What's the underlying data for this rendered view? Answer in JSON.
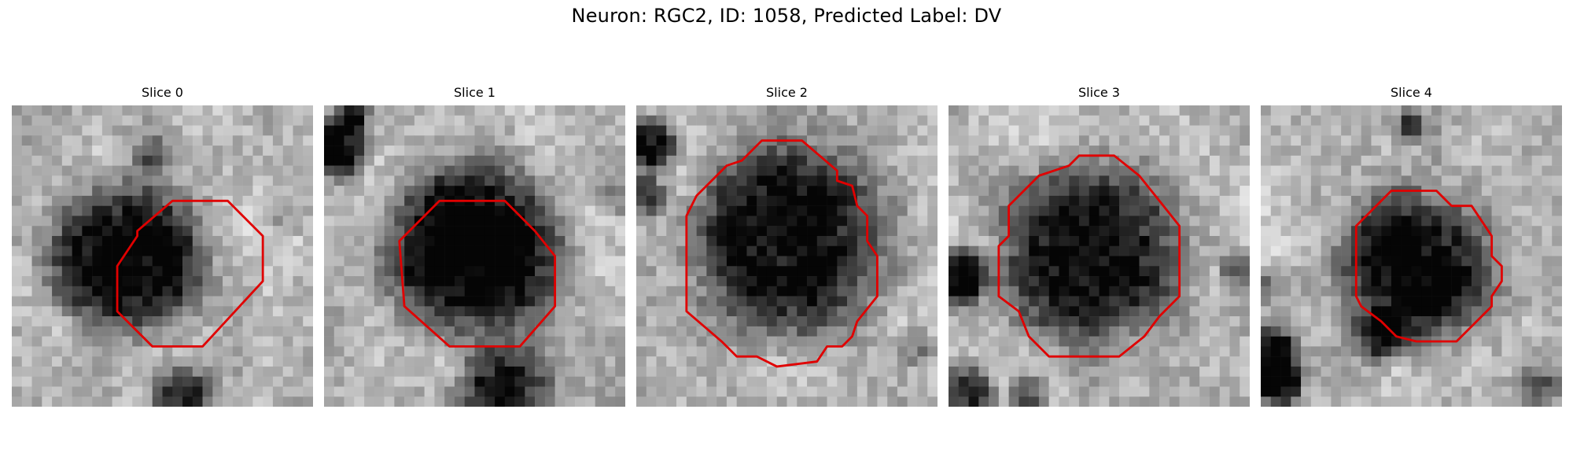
{
  "figure": {
    "title": "Neuron: RGC2, ID: 1058, Predicted Label: DV",
    "contour_color": "#e00000",
    "panels": [
      {
        "title": "Slice 0"
      },
      {
        "title": "Slice 1"
      },
      {
        "title": "Slice 2"
      },
      {
        "title": "Slice 3"
      },
      {
        "title": "Slice 4"
      }
    ]
  }
}
